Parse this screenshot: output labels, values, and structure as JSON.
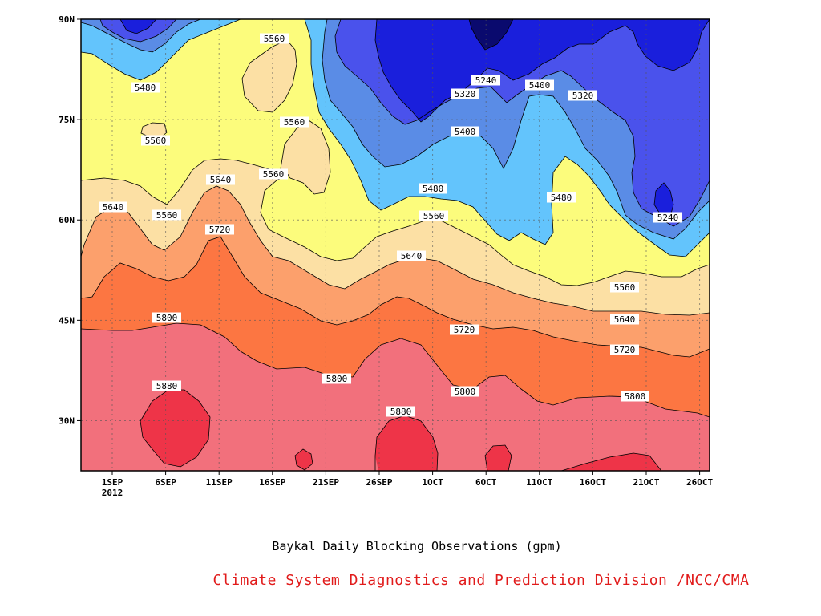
{
  "chart_data": {
    "type": "contour",
    "xlabel": "Baykal Daily Blocking Observations (gpm)",
    "credit": "Climate System Diagnostics and Prediction Division /NCC/CMA",
    "y_ticks": [
      {
        "value": 90,
        "label": "90N"
      },
      {
        "value": 75,
        "label": "75N"
      },
      {
        "value": 60,
        "label": "60N"
      },
      {
        "value": 45,
        "label": "45N"
      },
      {
        "value": 30,
        "label": "30N"
      }
    ],
    "x_ticks": [
      {
        "label": "1SEP",
        "sub": "2012"
      },
      {
        "label": "6SEP"
      },
      {
        "label": "11SEP"
      },
      {
        "label": "16SEP"
      },
      {
        "label": "21SEP"
      },
      {
        "label": "26SEP"
      },
      {
        "label": "1OCT"
      },
      {
        "label": "6OCT"
      },
      {
        "label": "11OCT"
      },
      {
        "label": "16OCT"
      },
      {
        "label": "21OCT"
      },
      {
        "label": "26OCT"
      }
    ],
    "ylim": [
      20,
      90
    ],
    "xlim": [
      "29AUG2012",
      "28OCT2012"
    ],
    "grid": true,
    "levels": [
      5240,
      5320,
      5400,
      5480,
      5560,
      5640,
      5720,
      5800,
      5880
    ],
    "fill_colors": {
      "5160": "#0a0a6e",
      "5240": "#1a1fdc",
      "5320": "#4a52ec",
      "5400": "#5a8ce6",
      "5480": "#63c4fc",
      "5560": "#fcfc7c",
      "5640": "#fce0a4",
      "5720": "#fca06c",
      "5800": "#fc7642",
      "5880": "#f2707c",
      "5960": "#ee3448"
    },
    "contour_labels": [
      {
        "text": "5560"
      },
      {
        "text": "5480"
      },
      {
        "text": "5560"
      },
      {
        "text": "5560"
      },
      {
        "text": "5240"
      },
      {
        "text": "5320"
      },
      {
        "text": "5400"
      },
      {
        "text": "5320"
      },
      {
        "text": "5400"
      },
      {
        "text": "5640"
      },
      {
        "text": "5560"
      },
      {
        "text": "5560"
      },
      {
        "text": "5640"
      },
      {
        "text": "5720"
      },
      {
        "text": "5480"
      },
      {
        "text": "5560"
      },
      {
        "text": "5480"
      },
      {
        "text": "5240"
      },
      {
        "text": "5640"
      },
      {
        "text": "5800"
      },
      {
        "text": "5720"
      },
      {
        "text": "5560"
      },
      {
        "text": "5640"
      },
      {
        "text": "5720"
      },
      {
        "text": "5800"
      },
      {
        "text": "5880"
      },
      {
        "text": "5800"
      },
      {
        "text": "5880"
      },
      {
        "text": "5800"
      }
    ]
  }
}
